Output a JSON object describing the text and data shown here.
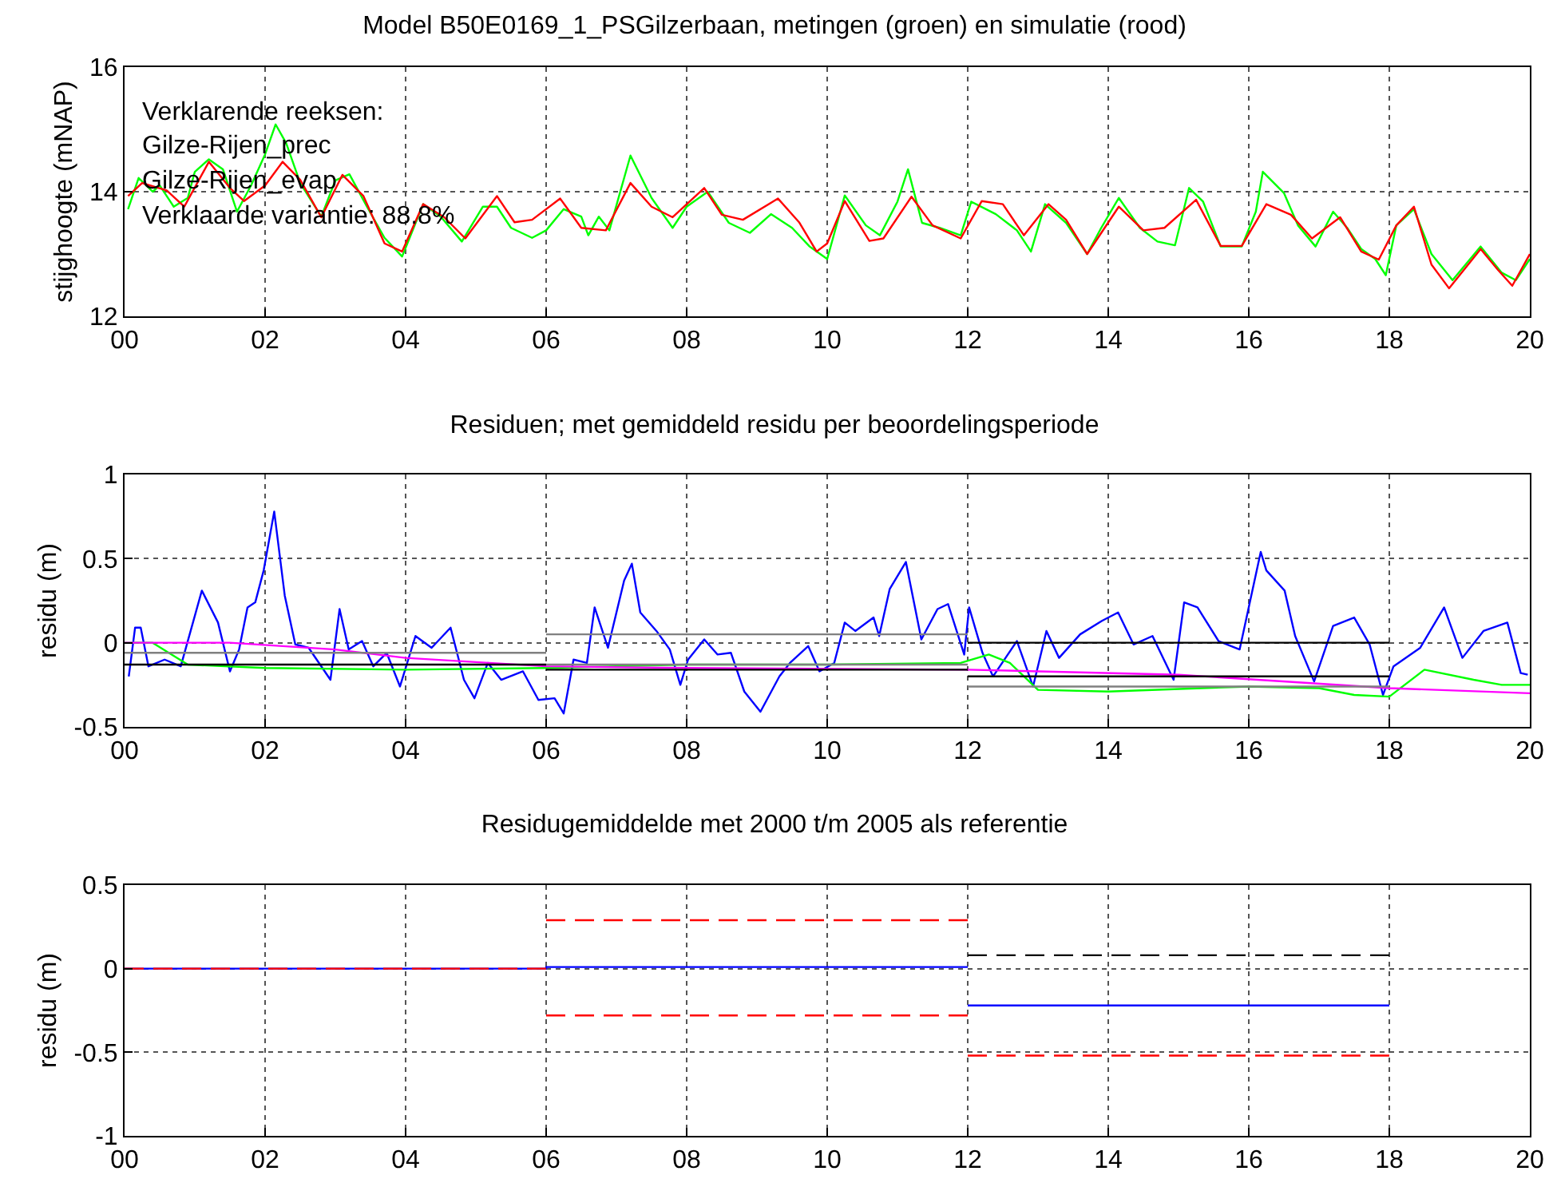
{
  "chart_data": [
    {
      "type": "line",
      "title": "Model B50E0169_1_PSGilzerbaan, metingen (groen) en simulatie (rood)",
      "ylabel": "stijghoogte (mNAP)",
      "grid": true,
      "legend": false,
      "xlim": [
        2000,
        2020
      ],
      "xticks": [
        {
          "value": 2000,
          "label": "00"
        },
        {
          "value": 2002,
          "label": "02"
        },
        {
          "value": 2004,
          "label": "04"
        },
        {
          "value": 2006,
          "label": "06"
        },
        {
          "value": 2008,
          "label": "08"
        },
        {
          "value": 2010,
          "label": "10"
        },
        {
          "value": 2012,
          "label": "12"
        },
        {
          "value": 2014,
          "label": "14"
        },
        {
          "value": 2016,
          "label": "16"
        },
        {
          "value": 2018,
          "label": "18"
        },
        {
          "value": 2020,
          "label": "20"
        }
      ],
      "ylim": [
        12,
        16
      ],
      "yticks": [
        12,
        14,
        16
      ],
      "annotations": [
        "Verklarende reeksen:",
        "Gilze-Rijen_prec",
        "Gilze-Rijen_evap",
        "Verklaarde variantie: 88.8%"
      ],
      "series": [
        {
          "color": "#00ff00",
          "x": [
            2000.05,
            2000.2,
            2000.4,
            2000.5,
            2000.7,
            2000.9,
            2001.0,
            2001.2,
            2001.4,
            2001.6,
            2001.8,
            2002.0,
            2002.15,
            2002.3,
            2002.5,
            2002.8,
            2003.0,
            2003.2,
            2003.45,
            2003.7,
            2003.95,
            2004.25,
            2004.5,
            2004.8,
            2005.1,
            2005.3,
            2005.5,
            2005.8,
            2006.0,
            2006.25,
            2006.5,
            2006.6,
            2006.75,
            2006.9,
            2007.2,
            2007.5,
            2007.8,
            2008.0,
            2008.3,
            2008.6,
            2008.9,
            2009.2,
            2009.5,
            2009.75,
            2010.0,
            2010.25,
            2010.55,
            2010.75,
            2011.0,
            2011.15,
            2011.35,
            2011.6,
            2011.9,
            2012.05,
            2012.4,
            2012.7,
            2012.9,
            2013.1,
            2013.4,
            2013.7,
            2013.9,
            2014.15,
            2014.45,
            2014.7,
            2014.95,
            2015.15,
            2015.35,
            2015.6,
            2015.9,
            2016.1,
            2016.2,
            2016.5,
            2016.7,
            2016.95,
            2017.2,
            2017.4,
            2017.6,
            2017.8,
            2017.95,
            2018.1,
            2018.35,
            2018.6,
            2018.9,
            2019.3,
            2019.6,
            2019.8,
            2020.0
          ],
          "values": [
            13.72,
            14.22,
            14.0,
            14.1,
            13.76,
            13.9,
            14.32,
            14.52,
            14.36,
            13.68,
            14.1,
            14.6,
            15.08,
            14.78,
            14.14,
            13.6,
            14.18,
            14.28,
            13.76,
            13.26,
            12.96,
            13.8,
            13.6,
            13.2,
            13.76,
            13.76,
            13.42,
            13.26,
            13.38,
            13.72,
            13.6,
            13.3,
            13.6,
            13.38,
            14.58,
            13.9,
            13.42,
            13.76,
            14.0,
            13.5,
            13.34,
            13.64,
            13.42,
            13.12,
            12.92,
            13.94,
            13.46,
            13.3,
            13.84,
            14.36,
            13.5,
            13.42,
            13.3,
            13.84,
            13.64,
            13.38,
            13.04,
            13.8,
            13.5,
            13.0,
            13.42,
            13.9,
            13.42,
            13.2,
            13.14,
            14.06,
            13.84,
            13.12,
            13.12,
            13.68,
            14.32,
            13.98,
            13.46,
            13.12,
            13.68,
            13.42,
            13.08,
            12.92,
            12.66,
            13.46,
            13.72,
            13.0,
            12.58,
            13.12,
            12.7,
            12.58,
            12.92
          ]
        },
        {
          "color": "#ff0000",
          "x": [
            2000.05,
            2000.25,
            2000.6,
            2000.85,
            2001.2,
            2001.5,
            2001.7,
            2002.0,
            2002.25,
            2002.5,
            2002.8,
            2003.1,
            2003.4,
            2003.7,
            2003.95,
            2004.25,
            2004.55,
            2004.85,
            2005.3,
            2005.55,
            2005.8,
            2006.2,
            2006.5,
            2006.85,
            2007.2,
            2007.5,
            2007.8,
            2008.25,
            2008.5,
            2008.8,
            2009.3,
            2009.6,
            2009.85,
            2010.0,
            2010.25,
            2010.6,
            2010.8,
            2011.2,
            2011.5,
            2011.9,
            2012.2,
            2012.5,
            2012.8,
            2013.15,
            2013.4,
            2013.7,
            2014.15,
            2014.5,
            2014.8,
            2015.25,
            2015.6,
            2015.9,
            2016.25,
            2016.6,
            2016.9,
            2017.3,
            2017.6,
            2017.85,
            2018.1,
            2018.35,
            2018.6,
            2018.85,
            2019.3,
            2019.55,
            2019.75,
            2020.0
          ],
          "values": [
            13.93,
            14.14,
            14.02,
            13.76,
            14.48,
            14.06,
            13.85,
            14.1,
            14.48,
            14.19,
            13.59,
            14.27,
            13.93,
            13.17,
            13.04,
            13.8,
            13.59,
            13.25,
            13.93,
            13.51,
            13.55,
            13.89,
            13.42,
            13.38,
            14.14,
            13.76,
            13.59,
            14.06,
            13.63,
            13.55,
            13.89,
            13.51,
            13.04,
            13.17,
            13.85,
            13.21,
            13.25,
            13.92,
            13.46,
            13.25,
            13.85,
            13.8,
            13.3,
            13.8,
            13.55,
            13.0,
            13.76,
            13.38,
            13.42,
            13.87,
            13.13,
            13.13,
            13.8,
            13.63,
            13.25,
            13.59,
            13.04,
            12.91,
            13.46,
            13.76,
            12.83,
            12.45,
            13.08,
            12.74,
            12.49,
            13.0
          ]
        }
      ]
    },
    {
      "type": "line",
      "title": "Residuen; met gemiddeld residu per beoordelingsperiode",
      "ylabel": "residu (m)",
      "grid": true,
      "legend": false,
      "xlim": [
        2000,
        2020
      ],
      "xticks": [
        {
          "value": 2000,
          "label": "00"
        },
        {
          "value": 2002,
          "label": "02"
        },
        {
          "value": 2004,
          "label": "04"
        },
        {
          "value": 2006,
          "label": "06"
        },
        {
          "value": 2008,
          "label": "08"
        },
        {
          "value": 2010,
          "label": "10"
        },
        {
          "value": 2012,
          "label": "12"
        },
        {
          "value": 2014,
          "label": "14"
        },
        {
          "value": 2016,
          "label": "16"
        },
        {
          "value": 2018,
          "label": "18"
        },
        {
          "value": 2020,
          "label": "20"
        }
      ],
      "ylim": [
        -0.5,
        1
      ],
      "yticks": [
        -0.5,
        0,
        0.5,
        1
      ],
      "series": [
        {
          "color": "#0000ff",
          "x": [
            2000.06,
            2000.15,
            2000.23,
            2000.34,
            2000.57,
            2000.8,
            2001.1,
            2001.33,
            2001.5,
            2001.63,
            2001.75,
            2001.86,
            2001.98,
            2002.13,
            2002.28,
            2002.43,
            2002.62,
            2002.93,
            2003.06,
            2003.19,
            2003.38,
            2003.54,
            2003.73,
            2003.92,
            2004.14,
            2004.37,
            2004.64,
            2004.83,
            2004.98,
            2005.17,
            2005.36,
            2005.67,
            2005.89,
            2006.12,
            2006.25,
            2006.39,
            2006.58,
            2006.69,
            2006.88,
            2007.11,
            2007.22,
            2007.34,
            2007.57,
            2007.76,
            2007.91,
            2008.02,
            2008.25,
            2008.44,
            2008.63,
            2008.82,
            2009.05,
            2009.32,
            2009.47,
            2009.73,
            2009.89,
            2010.1,
            2010.25,
            2010.4,
            2010.66,
            2010.74,
            2010.89,
            2011.12,
            2011.34,
            2011.57,
            2011.72,
            2011.95,
            2012.02,
            2012.21,
            2012.36,
            2012.7,
            2012.93,
            2013.12,
            2013.3,
            2013.6,
            2013.91,
            2014.14,
            2014.36,
            2014.63,
            2014.93,
            2015.08,
            2015.27,
            2015.57,
            2015.87,
            2016.17,
            2016.25,
            2016.51,
            2016.66,
            2016.93,
            2017.2,
            2017.5,
            2017.72,
            2017.91,
            2018.06,
            2018.44,
            2018.78,
            2019.04,
            2019.34,
            2019.68,
            2019.87,
            2019.97
          ],
          "values": [
            -0.2,
            0.09,
            0.09,
            -0.14,
            -0.1,
            -0.14,
            0.31,
            0.12,
            -0.17,
            -0.04,
            0.21,
            0.24,
            0.43,
            0.78,
            0.28,
            -0.01,
            -0.03,
            -0.22,
            0.2,
            -0.04,
            0.01,
            -0.14,
            -0.06,
            -0.26,
            0.04,
            -0.03,
            0.09,
            -0.22,
            -0.33,
            -0.12,
            -0.22,
            -0.17,
            -0.34,
            -0.33,
            -0.42,
            -0.1,
            -0.12,
            0.21,
            -0.03,
            0.37,
            0.47,
            0.18,
            0.07,
            -0.04,
            -0.25,
            -0.1,
            0.02,
            -0.07,
            -0.06,
            -0.29,
            -0.41,
            -0.2,
            -0.12,
            -0.02,
            -0.17,
            -0.12,
            0.12,
            0.07,
            0.15,
            0.04,
            0.32,
            0.48,
            0.02,
            0.2,
            0.23,
            -0.07,
            0.21,
            -0.06,
            -0.2,
            0.01,
            -0.26,
            0.07,
            -0.09,
            0.05,
            0.13,
            0.18,
            -0.01,
            0.04,
            -0.22,
            0.24,
            0.21,
            0.01,
            -0.04,
            0.54,
            0.43,
            0.31,
            0.04,
            -0.23,
            0.1,
            0.15,
            -0.01,
            -0.31,
            -0.14,
            -0.03,
            0.21,
            -0.09,
            0.07,
            0.12,
            -0.18,
            -0.19
          ]
        },
        {
          "color": "#00ff00",
          "x": [
            2000,
            2000.4,
            2000.9,
            2002,
            2004,
            2006,
            2008,
            2010,
            2011.9,
            2012.3,
            2012.6,
            2013,
            2014,
            2016,
            2017,
            2017.5,
            2018,
            2018.5,
            2019.2,
            2019.6,
            2020
          ],
          "values": [
            0,
            0,
            -0.13,
            -0.15,
            -0.16,
            -0.15,
            -0.13,
            -0.13,
            -0.12,
            -0.07,
            -0.12,
            -0.28,
            -0.29,
            -0.26,
            -0.27,
            -0.31,
            -0.32,
            -0.16,
            -0.22,
            -0.25,
            -0.25
          ]
        },
        {
          "color": "#ff00ff",
          "x": [
            2000,
            2001.5,
            2003,
            2004,
            2006,
            2008,
            2012,
            2015,
            2018,
            2020
          ],
          "values": [
            0,
            0,
            -0.04,
            -0.09,
            -0.14,
            -0.15,
            -0.16,
            -0.19,
            -0.27,
            -0.3
          ]
        },
        {
          "color": "#000000",
          "x": [
            2000,
            2006
          ],
          "values": [
            -0.13,
            -0.13
          ]
        },
        {
          "color": "#000000",
          "x": [
            2006,
            2012
          ],
          "values": [
            -0.16,
            -0.16
          ]
        },
        {
          "color": "#000000",
          "x": [
            2012,
            2018
          ],
          "values": [
            0,
            0
          ]
        },
        {
          "color": "#000000",
          "x": [
            2012,
            2018
          ],
          "values": [
            -0.2,
            -0.2
          ]
        },
        {
          "color": "#808080",
          "x": [
            2000,
            2006
          ],
          "values": [
            -0.06,
            -0.06
          ]
        },
        {
          "color": "#808080",
          "x": [
            2006,
            2012
          ],
          "values": [
            0.05,
            0.05
          ]
        },
        {
          "color": "#808080",
          "x": [
            2006,
            2012
          ],
          "values": [
            -0.13,
            -0.13
          ]
        },
        {
          "color": "#808080",
          "x": [
            2012,
            2018
          ],
          "values": [
            -0.26,
            -0.26
          ]
        }
      ]
    },
    {
      "type": "line",
      "title": "Residugemiddelde met 2000 t/m 2005 als referentie",
      "ylabel": "residu (m)",
      "grid": true,
      "legend": false,
      "xlim": [
        2000,
        2020
      ],
      "xticks": [
        {
          "value": 2000,
          "label": "00"
        },
        {
          "value": 2002,
          "label": "02"
        },
        {
          "value": 2004,
          "label": "04"
        },
        {
          "value": 2006,
          "label": "06"
        },
        {
          "value": 2008,
          "label": "08"
        },
        {
          "value": 2010,
          "label": "10"
        },
        {
          "value": 2012,
          "label": "12"
        },
        {
          "value": 2014,
          "label": "14"
        },
        {
          "value": 2016,
          "label": "16"
        },
        {
          "value": 2018,
          "label": "18"
        },
        {
          "value": 2020,
          "label": "20"
        }
      ],
      "ylim": [
        -1,
        0.5
      ],
      "yticks": [
        -1,
        -0.5,
        0,
        0.5
      ],
      "series": [
        {
          "color": "#0000ff",
          "x": [
            2000,
            2006,
            2006,
            2012
          ],
          "values": [
            0,
            0,
            0.01,
            0.01
          ]
        },
        {
          "color": "#0000ff",
          "x": [
            2012,
            2018
          ],
          "values": [
            -0.22,
            -0.22
          ]
        },
        {
          "color": "#ff0000",
          "line_style": "dashed",
          "x": [
            2000,
            2006
          ],
          "values": [
            0,
            0
          ]
        },
        {
          "color": "#ff0000",
          "line_style": "dashed",
          "x": [
            2006,
            2012
          ],
          "values": [
            0.29,
            0.29
          ]
        },
        {
          "color": "#ff0000",
          "line_style": "dashed",
          "x": [
            2006,
            2012
          ],
          "values": [
            -0.28,
            -0.28
          ]
        },
        {
          "color": "#ff0000",
          "line_style": "dashed",
          "x": [
            2012,
            2018
          ],
          "values": [
            -0.52,
            -0.52
          ]
        },
        {
          "color": "#000000",
          "line_style": "dashed",
          "x": [
            2012,
            2018
          ],
          "values": [
            0.08,
            0.08
          ]
        }
      ]
    }
  ]
}
